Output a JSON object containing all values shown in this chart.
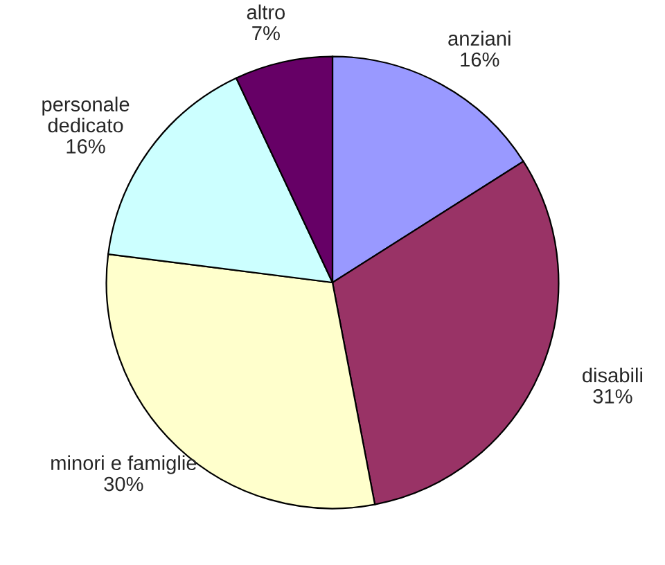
{
  "chart_data": {
    "type": "pie",
    "categories": [
      "anziani",
      "disabili",
      "minori e famiglie",
      "personale\ndedicato",
      "altro"
    ],
    "values": [
      16,
      31,
      30,
      16,
      7
    ],
    "value_labels": [
      "16%",
      "31%",
      "30%",
      "16%",
      "7%"
    ],
    "colors": [
      "#9999ff",
      "#993366",
      "#ffffcc",
      "#ccffff",
      "#660066"
    ]
  }
}
